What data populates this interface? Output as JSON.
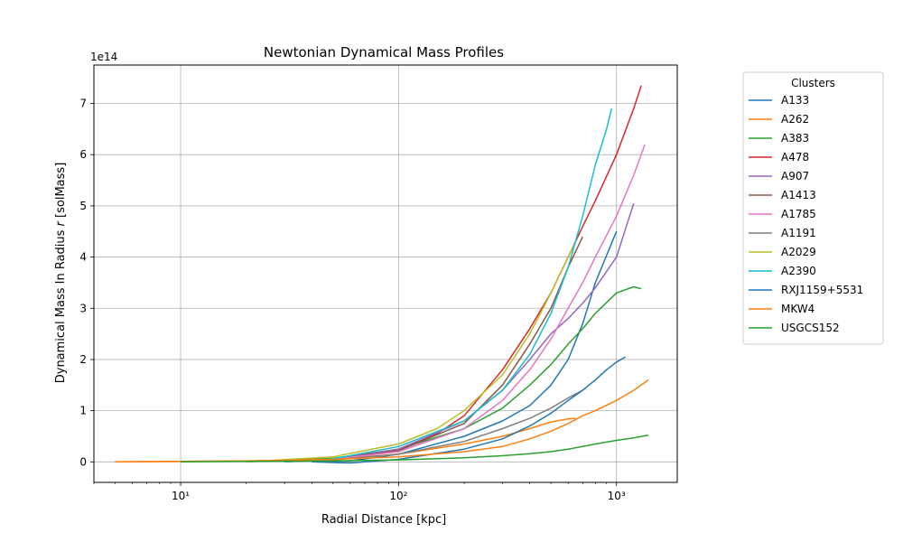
{
  "chart_data": {
    "type": "line",
    "title": "Newtonian Dynamical Mass Profiles",
    "xlabel": "Radial Distance [kpc]",
    "ylabel": "Dynamical Mass In Radius r [solMass]",
    "x_scale": "log",
    "xlim": [
      4,
      1900
    ],
    "ylim": [
      -40000000000000.0,
      775000000000000.0
    ],
    "y_offset_label": "1e14",
    "x_ticks": [
      {
        "value": 10,
        "label": "10¹"
      },
      {
        "value": 100,
        "label": "10²"
      },
      {
        "value": 1000,
        "label": "10³"
      }
    ],
    "y_ticks": [
      {
        "value": 0,
        "label": "0"
      },
      {
        "value": 100000000000000.0,
        "label": "1"
      },
      {
        "value": 200000000000000.0,
        "label": "2"
      },
      {
        "value": 300000000000000.0,
        "label": "3"
      },
      {
        "value": 400000000000000.0,
        "label": "4"
      },
      {
        "value": 500000000000000.0,
        "label": "5"
      },
      {
        "value": 600000000000000.0,
        "label": "6"
      },
      {
        "value": 700000000000000.0,
        "label": "7"
      }
    ],
    "grid": true,
    "legend": {
      "title": "Clusters",
      "position": "outside-right"
    },
    "series": [
      {
        "name": "A133",
        "color": "#1f77b4",
        "x": [
          40,
          60,
          100,
          200,
          300,
          400,
          500,
          600,
          700,
          800,
          1000
        ],
        "y": [
          0,
          2000000000000.0,
          15000000000000.0,
          50000000000000.0,
          80000000000000.0,
          110000000000000.0,
          150000000000000.0,
          200000000000000.0,
          270000000000000.0,
          350000000000000.0,
          450000000000000.0
        ]
      },
      {
        "name": "A262",
        "color": "#ff7f0e",
        "x": [
          5,
          10,
          20,
          50,
          100,
          200,
          300,
          400,
          500,
          600,
          650
        ],
        "y": [
          0,
          1000000000000.0,
          2000000000000.0,
          5000000000000.0,
          15000000000000.0,
          35000000000000.0,
          50000000000000.0,
          65000000000000.0,
          78000000000000.0,
          84000000000000.0,
          85000000000000.0
        ]
      },
      {
        "name": "A383",
        "color": "#2ca02c",
        "x": [
          20,
          50,
          100,
          200,
          300,
          400,
          500,
          600,
          700,
          800,
          1000,
          1200,
          1300
        ],
        "y": [
          0,
          7000000000000.0,
          25000000000000.0,
          65000000000000.0,
          105000000000000.0,
          150000000000000.0,
          190000000000000.0,
          230000000000000.0,
          260000000000000.0,
          290000000000000.0,
          330000000000000.0,
          342000000000000.0,
          338000000000000.0
        ]
      },
      {
        "name": "A478",
        "color": "#d62728",
        "x": [
          30,
          50,
          100,
          150,
          200,
          300,
          400,
          500,
          600,
          700,
          800,
          1000,
          1200,
          1300
        ],
        "y": [
          0,
          5000000000000.0,
          25000000000000.0,
          55000000000000.0,
          90000000000000.0,
          180000000000000.0,
          260000000000000.0,
          330000000000000.0,
          400000000000000.0,
          460000000000000.0,
          510000000000000.0,
          600000000000000.0,
          690000000000000.0,
          735000000000000.0
        ]
      },
      {
        "name": "A907",
        "color": "#9467bd",
        "x": [
          30,
          50,
          100,
          200,
          300,
          400,
          500,
          600,
          700,
          800,
          1000,
          1200
        ],
        "y": [
          0,
          5000000000000.0,
          25000000000000.0,
          80000000000000.0,
          140000000000000.0,
          200000000000000.0,
          250000000000000.0,
          280000000000000.0,
          310000000000000.0,
          340000000000000.0,
          400000000000000.0,
          505000000000000.0
        ]
      },
      {
        "name": "A1413",
        "color": "#8c564b",
        "x": [
          30,
          50,
          100,
          200,
          300,
          400,
          500,
          600,
          700
        ],
        "y": [
          0,
          5000000000000.0,
          22000000000000.0,
          75000000000000.0,
          150000000000000.0,
          230000000000000.0,
          300000000000000.0,
          380000000000000.0,
          440000000000000.0
        ]
      },
      {
        "name": "A1785",
        "color": "#e377c2",
        "x": [
          30,
          50,
          100,
          200,
          300,
          400,
          500,
          600,
          700,
          800,
          1000,
          1200,
          1350
        ],
        "y": [
          0,
          5000000000000.0,
          20000000000000.0,
          65000000000000.0,
          120000000000000.0,
          180000000000000.0,
          240000000000000.0,
          300000000000000.0,
          350000000000000.0,
          400000000000000.0,
          480000000000000.0,
          560000000000000.0,
          620000000000000.0
        ]
      },
      {
        "name": "A1191",
        "color": "#7f7f7f",
        "x": [
          30,
          50,
          100,
          200,
          300,
          400,
          500,
          600,
          700
        ],
        "y": [
          0,
          4000000000000.0,
          15000000000000.0,
          40000000000000.0,
          65000000000000.0,
          85000000000000.0,
          105000000000000.0,
          125000000000000.0,
          140000000000000.0
        ]
      },
      {
        "name": "A2029",
        "color": "#bcbd22",
        "x": [
          20,
          50,
          100,
          150,
          200,
          300,
          400,
          500,
          600,
          650
        ],
        "y": [
          0,
          10000000000000.0,
          35000000000000.0,
          65000000000000.0,
          100000000000000.0,
          170000000000000.0,
          250000000000000.0,
          330000000000000.0,
          400000000000000.0,
          430000000000000.0
        ]
      },
      {
        "name": "A2390",
        "color": "#17becf",
        "x": [
          30,
          50,
          100,
          200,
          300,
          400,
          500,
          600,
          700,
          800,
          900,
          950
        ],
        "y": [
          0,
          6000000000000.0,
          30000000000000.0,
          80000000000000.0,
          140000000000000.0,
          210000000000000.0,
          290000000000000.0,
          380000000000000.0,
          480000000000000.0,
          580000000000000.0,
          650000000000000.0,
          690000000000000.0
        ]
      },
      {
        "name": "RXJ1159+5531",
        "color": "#1f77b4",
        "x": [
          40,
          60,
          100,
          200,
          300,
          400,
          500,
          600,
          700,
          800,
          900,
          1000,
          1100
        ],
        "y": [
          0,
          -2000000000000.0,
          5000000000000.0,
          25000000000000.0,
          45000000000000.0,
          70000000000000.0,
          95000000000000.0,
          120000000000000.0,
          140000000000000.0,
          160000000000000.0,
          180000000000000.0,
          195000000000000.0,
          205000000000000.0
        ]
      },
      {
        "name": "MKW4",
        "color": "#ff7f0e",
        "x": [
          5,
          10,
          20,
          50,
          100,
          200,
          300,
          400,
          500,
          600,
          700,
          800,
          1000,
          1200,
          1400
        ],
        "y": [
          0,
          1000000000000.0,
          2000000000000.0,
          5000000000000.0,
          10000000000000.0,
          20000000000000.0,
          30000000000000.0,
          45000000000000.0,
          60000000000000.0,
          75000000000000.0,
          90000000000000.0,
          100000000000000.0,
          120000000000000.0,
          140000000000000.0,
          160000000000000.0
        ]
      },
      {
        "name": "USGCS152",
        "color": "#2ca02c",
        "x": [
          10,
          20,
          50,
          100,
          200,
          300,
          400,
          500,
          600,
          700,
          800,
          1000,
          1200,
          1400
        ],
        "y": [
          0,
          1000000000000.0,
          2000000000000.0,
          4000000000000.0,
          8000000000000.0,
          12000000000000.0,
          16000000000000.0,
          20000000000000.0,
          25000000000000.0,
          30000000000000.0,
          35000000000000.0,
          42000000000000.0,
          47000000000000.0,
          52000000000000.0
        ]
      }
    ]
  }
}
